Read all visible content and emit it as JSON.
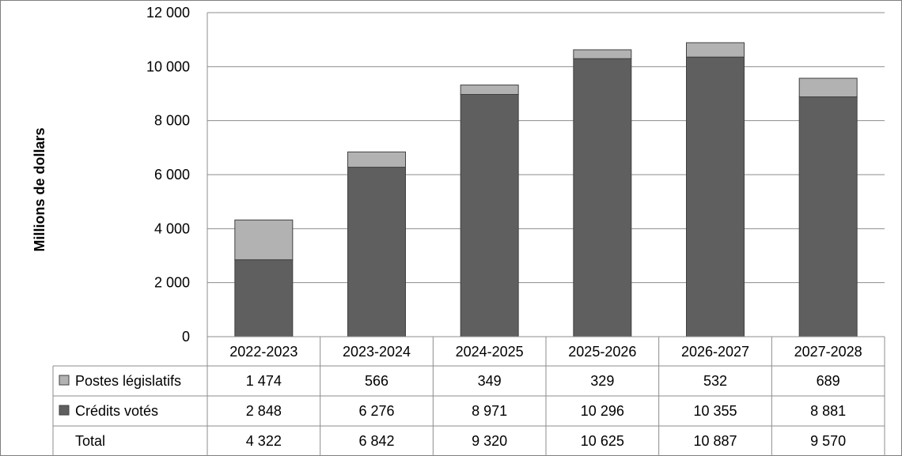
{
  "chart_data": {
    "type": "bar",
    "stacked": true,
    "ylabel": "Millions de dollars",
    "ylim": [
      0,
      12000
    ],
    "yticks": [
      0,
      2000,
      4000,
      6000,
      8000,
      10000,
      12000
    ],
    "ytick_labels": [
      "0",
      "2 000",
      "4 000",
      "6 000",
      "8 000",
      "10 000",
      "12 000"
    ],
    "categories": [
      "2022-2023",
      "2023-2024",
      "2024-2025",
      "2025-2026",
      "2026-2027",
      "2027-2028"
    ],
    "series": [
      {
        "name": "Crédits votés",
        "color": "#5f5f5f",
        "values": [
          2848,
          6276,
          8971,
          10296,
          10355,
          8881
        ],
        "labels": [
          "2 848",
          "6 276",
          "8 971",
          "10 296",
          "10 355",
          "8 881"
        ]
      },
      {
        "name": "Postes législatifs",
        "color": "#b2b2b2",
        "values": [
          1474,
          566,
          349,
          329,
          532,
          689
        ],
        "labels": [
          "1 474",
          "566",
          "349",
          "329",
          "532",
          "689"
        ]
      }
    ],
    "total": {
      "name": "Total",
      "values": [
        4322,
        6842,
        9320,
        10625,
        10887,
        9570
      ],
      "labels": [
        "4 322",
        "6 842",
        "9 320",
        "10 625",
        "10 887",
        "9 570"
      ]
    },
    "table_row_order": [
      "Postes législatifs",
      "Crédits votés",
      "Total"
    ],
    "grid": true,
    "legend": "data-table"
  }
}
